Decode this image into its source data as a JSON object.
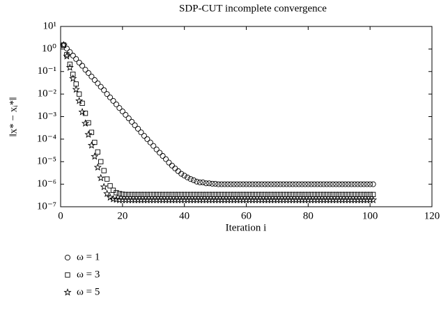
{
  "chart_data": {
    "type": "scatter",
    "title": "SDP-CUT incomplete convergence",
    "xlabel": "Iteration i",
    "ylabel": "‖x* − xᵢ*‖",
    "log_y": true,
    "color": "#000000",
    "xlim": [
      0,
      120
    ],
    "xticks": [
      0,
      20,
      40,
      60,
      80,
      100,
      120
    ],
    "ylim": [
      1e-07,
      10
    ],
    "yticks": [
      {
        "value": 10,
        "label": "10¹"
      },
      {
        "value": 1,
        "label": "10⁰"
      },
      {
        "value": 0.1,
        "label": "10⁻¹"
      },
      {
        "value": 0.01,
        "label": "10⁻²"
      },
      {
        "value": 0.001,
        "label": "10⁻³"
      },
      {
        "value": 0.0001,
        "label": "10⁻⁴"
      },
      {
        "value": 1e-05,
        "label": "10⁻⁵"
      },
      {
        "value": 1e-06,
        "label": "10⁻⁶"
      },
      {
        "value": 1e-07,
        "label": "10⁻⁷"
      }
    ],
    "x": [
      1,
      2,
      3,
      4,
      5,
      6,
      7,
      8,
      9,
      10,
      11,
      12,
      13,
      14,
      15,
      16,
      17,
      18,
      19,
      20,
      21,
      22,
      23,
      24,
      25,
      26,
      27,
      28,
      29,
      30,
      31,
      32,
      33,
      34,
      35,
      36,
      37,
      38,
      39,
      40,
      41,
      42,
      43,
      44,
      45,
      46,
      47,
      48,
      49,
      50,
      51,
      52,
      53,
      54,
      55,
      56,
      57,
      58,
      59,
      60,
      61,
      62,
      63,
      64,
      65,
      66,
      67,
      68,
      69,
      70,
      71,
      72,
      73,
      74,
      75,
      76,
      77,
      78,
      79,
      80,
      81,
      82,
      83,
      84,
      85,
      86,
      87,
      88,
      89,
      90,
      91,
      92,
      93,
      94,
      95,
      96,
      97,
      98,
      99,
      100,
      101
    ],
    "series": [
      {
        "name": "ω = 1",
        "marker": "circle",
        "values": [
          1.5,
          1.05,
          0.735,
          0.51,
          0.36,
          0.25,
          0.18,
          0.12,
          0.086,
          0.06,
          0.042,
          0.03,
          0.021,
          0.015,
          0.01,
          0.0071,
          0.005,
          0.0035,
          0.0024,
          0.0017,
          0.0012,
          0.00084,
          0.00059,
          0.00041,
          0.00029,
          0.0002,
          0.00014,
          0.0001,
          7.1e-05,
          5e-05,
          3.5e-05,
          2.5e-05,
          1.8e-05,
          1.3e-05,
          9.1e-06,
          6.7e-06,
          5e-06,
          3.8e-06,
          2.9e-06,
          2.4e-06,
          2e-06,
          1.7e-06,
          1.5e-06,
          1.3e-06,
          1.2e-06,
          1.2e-06,
          1.1e-06,
          1.1e-06,
          1.05e-06,
          1.04e-06,
          1e-06,
          1e-06,
          1e-06,
          1e-06,
          1e-06,
          1e-06,
          1e-06,
          1e-06,
          1e-06,
          1e-06,
          1e-06,
          1e-06,
          1e-06,
          1e-06,
          1e-06,
          1e-06,
          1e-06,
          1e-06,
          1e-06,
          1e-06,
          1e-06,
          1e-06,
          1e-06,
          1e-06,
          1e-06,
          1e-06,
          1e-06,
          1e-06,
          1e-06,
          1e-06,
          1e-06,
          1e-06,
          1e-06,
          1e-06,
          1e-06,
          1e-06,
          1e-06,
          1e-06,
          1e-06,
          1e-06,
          1e-06,
          1e-06,
          1e-06,
          1e-06,
          1e-06,
          1e-06,
          1e-06,
          1e-06,
          1e-06,
          1e-06,
          1e-06
        ]
      },
      {
        "name": "ω = 3",
        "marker": "square",
        "values": [
          1.5,
          0.56,
          0.21,
          0.076,
          0.028,
          0.01,
          0.0039,
          0.0014,
          0.00053,
          0.0002,
          7.2e-05,
          2.7e-05,
          1e-05,
          4e-06,
          1.7e-06,
          8.5e-07,
          5.4e-07,
          4.2e-07,
          3.8e-07,
          3.6e-07,
          3.5e-07,
          3.5e-07,
          3.5e-07,
          3.5e-07,
          3.5e-07,
          3.5e-07,
          3.5e-07,
          3.5e-07,
          3.5e-07,
          3.5e-07,
          3.5e-07,
          3.5e-07,
          3.5e-07,
          3.5e-07,
          3.5e-07,
          3.5e-07,
          3.5e-07,
          3.5e-07,
          3.5e-07,
          3.5e-07,
          3.5e-07,
          3.5e-07,
          3.5e-07,
          3.5e-07,
          3.5e-07,
          3.5e-07,
          3.5e-07,
          3.5e-07,
          3.5e-07,
          3.5e-07,
          3.5e-07,
          3.5e-07,
          3.5e-07,
          3.5e-07,
          3.5e-07,
          3.5e-07,
          3.5e-07,
          3.5e-07,
          3.5e-07,
          3.5e-07,
          3.5e-07,
          3.5e-07,
          3.5e-07,
          3.5e-07,
          3.5e-07,
          3.5e-07,
          3.5e-07,
          3.5e-07,
          3.5e-07,
          3.5e-07,
          3.5e-07,
          3.5e-07,
          3.5e-07,
          3.5e-07,
          3.5e-07,
          3.5e-07,
          3.5e-07,
          3.5e-07,
          3.5e-07,
          3.5e-07,
          3.5e-07,
          3.5e-07,
          3.5e-07,
          3.5e-07,
          3.5e-07,
          3.5e-07,
          3.5e-07,
          3.5e-07,
          3.5e-07,
          3.5e-07,
          3.5e-07,
          3.5e-07,
          3.5e-07,
          3.5e-07,
          3.5e-07,
          3.5e-07,
          3.5e-07,
          3.5e-07,
          3.5e-07,
          3.5e-07,
          3.5e-07
        ]
      },
      {
        "name": "ω = 5",
        "marker": "star",
        "values": [
          1.5,
          0.48,
          0.15,
          0.049,
          0.016,
          0.005,
          0.0016,
          0.0005,
          0.00016,
          5.3e-05,
          1.7e-05,
          5.6e-06,
          1.9e-06,
          7.6e-07,
          3.8e-07,
          2.6e-07,
          2.2e-07,
          2.1e-07,
          2e-07,
          2e-07,
          2e-07,
          2e-07,
          2e-07,
          2e-07,
          2e-07,
          2e-07,
          2e-07,
          2e-07,
          2e-07,
          2e-07,
          2e-07,
          2e-07,
          2e-07,
          2e-07,
          2e-07,
          2e-07,
          2e-07,
          2e-07,
          2e-07,
          2e-07,
          2e-07,
          2e-07,
          2e-07,
          2e-07,
          2e-07,
          2e-07,
          2e-07,
          2e-07,
          2e-07,
          2e-07,
          2e-07,
          2e-07,
          2e-07,
          2e-07,
          2e-07,
          2e-07,
          2e-07,
          2e-07,
          2e-07,
          2e-07,
          2e-07,
          2e-07,
          2e-07,
          2e-07,
          2e-07,
          2e-07,
          2e-07,
          2e-07,
          2e-07,
          2e-07,
          2e-07,
          2e-07,
          2e-07,
          2e-07,
          2e-07,
          2e-07,
          2e-07,
          2e-07,
          2e-07,
          2e-07,
          2e-07,
          2e-07,
          2e-07,
          2e-07,
          2e-07,
          2e-07,
          2e-07,
          2e-07,
          2e-07,
          2e-07,
          2e-07,
          2e-07,
          2e-07,
          2e-07,
          2e-07,
          2e-07,
          2e-07,
          2e-07,
          2e-07,
          2e-07,
          2e-07
        ]
      }
    ]
  }
}
